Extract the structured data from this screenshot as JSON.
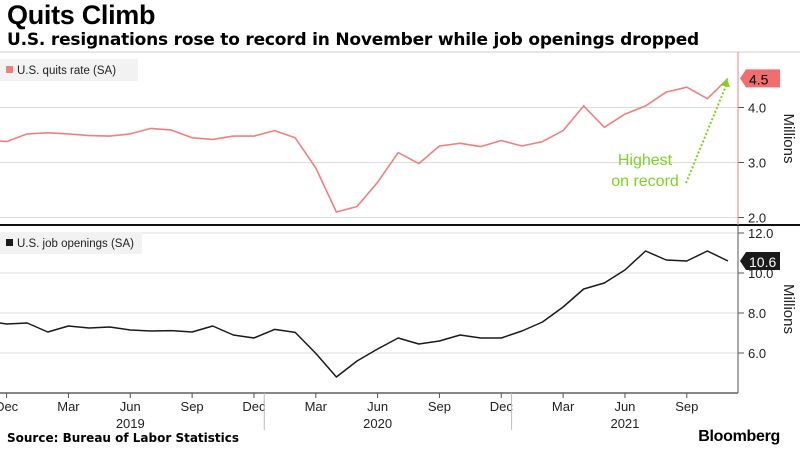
{
  "title": "Quits Climb",
  "subtitle": "U.S. resignations rose to record in November while job openings dropped",
  "source": "Source: Bureau of Labor Statistics",
  "brand": "Bloomberg",
  "colors": {
    "quits": "#f08080",
    "openings": "#1a1a1a",
    "annotation": "#7fd320",
    "grid": "#dcdcdc",
    "axis": "#555555",
    "quits_badge": "#f26d6d"
  },
  "chart_data": [
    {
      "type": "line",
      "legend": "U.S. quits rate (SA)",
      "ylabel": "Millions",
      "ylim": [
        1.9,
        4.9
      ],
      "yticks": [
        2.0,
        3.0,
        4.0
      ],
      "ytick_labels": [
        "2.0",
        "3.0",
        "4.0"
      ],
      "last_value_label": "4.5",
      "annotation": [
        "Highest",
        "on record"
      ],
      "x": [
        "2018-11",
        "2018-12",
        "2019-01",
        "2019-02",
        "2019-03",
        "2019-04",
        "2019-05",
        "2019-06",
        "2019-07",
        "2019-08",
        "2019-09",
        "2019-10",
        "2019-11",
        "2019-12",
        "2020-01",
        "2020-02",
        "2020-03",
        "2020-04",
        "2020-05",
        "2020-06",
        "2020-07",
        "2020-08",
        "2020-09",
        "2020-10",
        "2020-11",
        "2020-12",
        "2021-01",
        "2021-02",
        "2021-03",
        "2021-04",
        "2021-05",
        "2021-06",
        "2021-07",
        "2021-08",
        "2021-09",
        "2021-10",
        "2021-11"
      ],
      "values": [
        3.42,
        3.38,
        3.52,
        3.54,
        3.52,
        3.49,
        3.48,
        3.52,
        3.62,
        3.59,
        3.45,
        3.42,
        3.48,
        3.48,
        3.58,
        3.45,
        2.9,
        2.1,
        2.2,
        2.64,
        3.18,
        2.98,
        3.3,
        3.35,
        3.29,
        3.4,
        3.3,
        3.38,
        3.58,
        4.03,
        3.64,
        3.88,
        4.03,
        4.28,
        4.37,
        4.16,
        4.53
      ]
    },
    {
      "type": "line",
      "legend": "U.S. job openings (SA)",
      "ylabel": "Millions",
      "ylim": [
        4.0,
        12.0
      ],
      "yticks": [
        6.0,
        8.0,
        10.0,
        12.0
      ],
      "ytick_labels": [
        "6.0",
        "8.0",
        "10.0",
        "12.0"
      ],
      "last_value_label": "10.6",
      "x": [
        "2018-11",
        "2018-12",
        "2019-01",
        "2019-02",
        "2019-03",
        "2019-04",
        "2019-05",
        "2019-06",
        "2019-07",
        "2019-08",
        "2019-09",
        "2019-10",
        "2019-11",
        "2019-12",
        "2020-01",
        "2020-02",
        "2020-03",
        "2020-04",
        "2020-05",
        "2020-06",
        "2020-07",
        "2020-08",
        "2020-09",
        "2020-10",
        "2020-11",
        "2020-12",
        "2021-01",
        "2021-02",
        "2021-03",
        "2021-04",
        "2021-05",
        "2021-06",
        "2021-07",
        "2021-08",
        "2021-09",
        "2021-10",
        "2021-11"
      ],
      "values": [
        7.6,
        7.45,
        7.5,
        7.05,
        7.35,
        7.25,
        7.3,
        7.15,
        7.1,
        7.12,
        7.05,
        7.35,
        6.9,
        6.75,
        7.18,
        7.03,
        5.98,
        4.8,
        5.6,
        6.2,
        6.75,
        6.45,
        6.6,
        6.9,
        6.75,
        6.75,
        7.1,
        7.55,
        8.3,
        9.2,
        9.5,
        10.15,
        11.1,
        10.65,
        10.6,
        11.1,
        10.6
      ]
    }
  ],
  "x_axis": {
    "month_labels": [
      {
        "date": "2018-12",
        "label": "Dec"
      },
      {
        "date": "2019-03",
        "label": "Mar"
      },
      {
        "date": "2019-06",
        "label": "Jun"
      },
      {
        "date": "2019-09",
        "label": "Sep"
      },
      {
        "date": "2019-12",
        "label": "Dec"
      },
      {
        "date": "2020-03",
        "label": "Mar"
      },
      {
        "date": "2020-06",
        "label": "Jun"
      },
      {
        "date": "2020-09",
        "label": "Sep"
      },
      {
        "date": "2020-12",
        "label": "Dec"
      },
      {
        "date": "2021-03",
        "label": "Mar"
      },
      {
        "date": "2021-06",
        "label": "Jun"
      },
      {
        "date": "2021-09",
        "label": "Sep"
      }
    ],
    "year_labels": [
      {
        "date": "2019-06",
        "label": "2019"
      },
      {
        "date": "2020-06",
        "label": "2020"
      },
      {
        "date": "2021-06",
        "label": "2021"
      }
    ]
  }
}
